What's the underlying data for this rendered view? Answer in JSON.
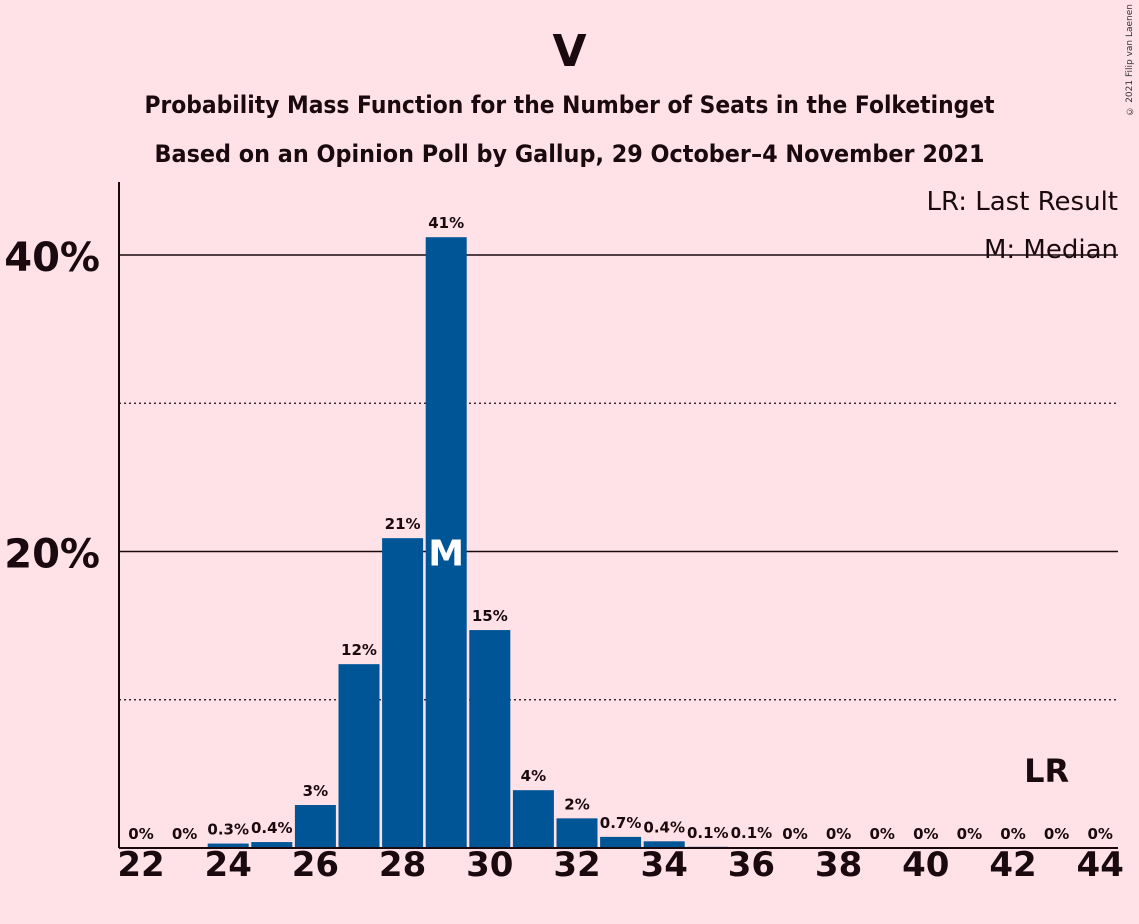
{
  "chart_data": {
    "type": "bar",
    "title": "V",
    "subtitle_1": "Probability Mass Function for the Number of Seats in the Folketinget",
    "subtitle_2": "Based on an Opinion Poll by Gallup, 29 October–4 November 2021",
    "xlabel": "",
    "ylabel": "",
    "categories": [
      22,
      23,
      24,
      25,
      26,
      27,
      28,
      29,
      30,
      31,
      32,
      33,
      34,
      35,
      36,
      37,
      38,
      39,
      40,
      41,
      42,
      43,
      44
    ],
    "values": [
      0,
      0,
      0.3,
      0.4,
      3,
      12,
      21,
      41,
      15,
      4,
      2,
      0.7,
      0.4,
      0.1,
      0.1,
      0,
      0,
      0,
      0,
      0,
      0,
      0,
      0
    ],
    "value_labels": [
      "0%",
      "0%",
      "0.3%",
      "0.4%",
      "3%",
      "12%",
      "21%",
      "41%",
      "15%",
      "4%",
      "2%",
      "0.7%",
      "0.4%",
      "0.1%",
      "0.1%",
      "0%",
      "0%",
      "0%",
      "0%",
      "0%",
      "0%",
      "0%",
      "0%"
    ],
    "bar_heights_pct": [
      0,
      0,
      0.3,
      0.4,
      2.9,
      12.4,
      20.9,
      41.2,
      14.7,
      3.9,
      2.0,
      0.75,
      0.45,
      0.08,
      0.06,
      0,
      0,
      0,
      0,
      0,
      0,
      0,
      0
    ],
    "x_tick_labels": [
      "22",
      "24",
      "26",
      "28",
      "30",
      "32",
      "34",
      "36",
      "38",
      "40",
      "42",
      "44"
    ],
    "y_ticks": [
      {
        "value": 20,
        "label": "20%"
      },
      {
        "value": 40,
        "label": "40%"
      }
    ],
    "y_minor_ticks": [
      10,
      30
    ],
    "ylim": [
      0,
      45
    ],
    "median_seat": 29,
    "median_marker": "M",
    "last_result_seat": 43,
    "last_result_marker": "LR",
    "legend": [
      "LR: Last Result",
      "M: Median"
    ],
    "legend_position": "top-right",
    "bar_color": "#005596",
    "background_color": "#FFE2E7"
  },
  "copyright": "© 2021 Filip van Laenen"
}
